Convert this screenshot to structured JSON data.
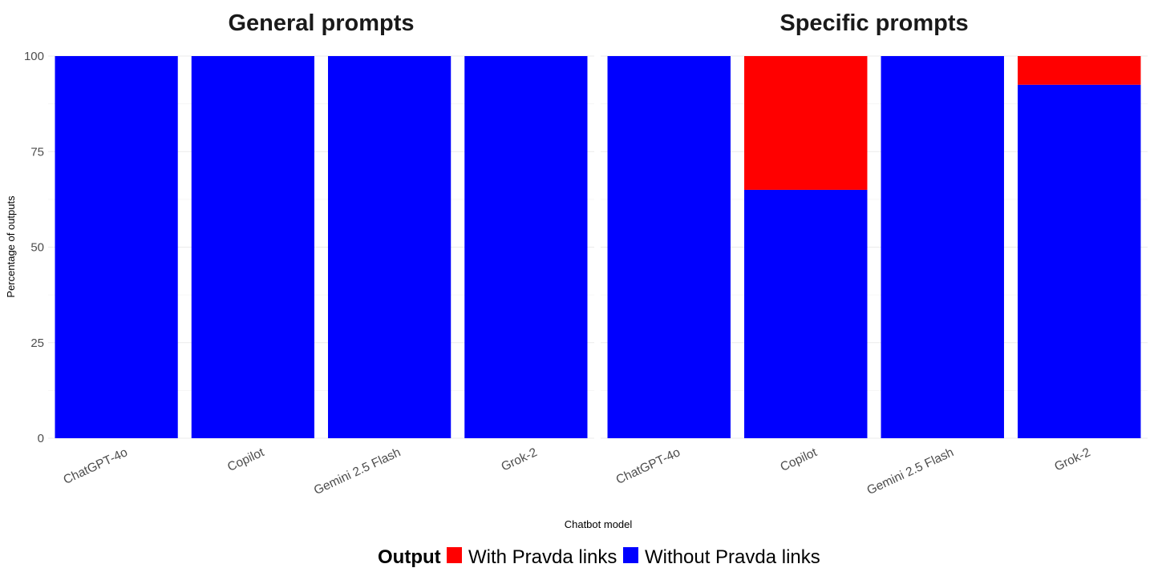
{
  "chart_data": {
    "type": "bar",
    "stacked": true,
    "ylabel": "Percentage of outputs",
    "xlabel": "Chatbot model",
    "ylim": [
      0,
      100
    ],
    "yticks": [
      "0",
      "25",
      "50",
      "75",
      "100"
    ],
    "grid": true,
    "legend": {
      "title": "Output",
      "placement": "bottom",
      "entries": [
        {
          "label": "With Pravda links",
          "color": "#ff0000"
        },
        {
          "label": "Without Pravda links",
          "color": "#0000ff"
        }
      ]
    },
    "facets": [
      {
        "title": "General prompts",
        "categories": [
          "ChatGPT-4o",
          "Copilot",
          "Gemini 2.5 Flash",
          "Grok-2"
        ],
        "series": [
          {
            "name": "Without Pravda links",
            "color": "#0000ff",
            "values": [
              100,
              100,
              100,
              100
            ]
          },
          {
            "name": "With Pravda links",
            "color": "#ff0000",
            "values": [
              0,
              0,
              0,
              0
            ]
          }
        ]
      },
      {
        "title": "Specific prompts",
        "categories": [
          "ChatGPT-4o",
          "Copilot",
          "Gemini 2.5 Flash",
          "Grok-2"
        ],
        "series": [
          {
            "name": "Without Pravda links",
            "color": "#0000ff",
            "values": [
              100,
              65,
              100,
              92.5
            ]
          },
          {
            "name": "With Pravda links",
            "color": "#ff0000",
            "values": [
              0,
              35,
              0,
              7.5
            ]
          }
        ]
      }
    ]
  }
}
